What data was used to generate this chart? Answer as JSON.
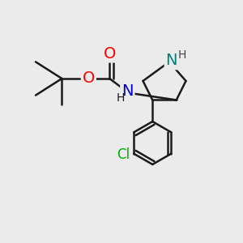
{
  "background_color": "#ebebeb",
  "bond_color": "#1a1a1a",
  "bond_width": 1.8,
  "atom_colors": {
    "O": "#ff0000",
    "N_blue": "#0000cc",
    "N_teal": "#008080",
    "Cl": "#00aa00",
    "C": "#1a1a1a",
    "H": "#444444"
  },
  "font_size_atoms": 12,
  "font_size_h": 10
}
